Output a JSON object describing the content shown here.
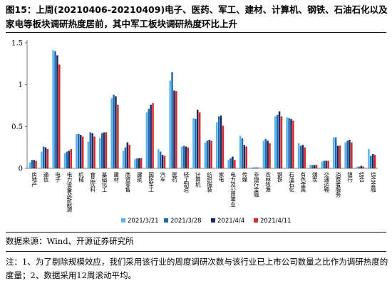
{
  "header": {
    "title": "图15：上周(20210406-20210409)电子、医药、军工、建材、计算机、钢铁、石油石化以及家电等板块调研热度居前，其中军工板块调研热度环比上升"
  },
  "footer": {
    "source": "数据来源：Wind、开源证券研究所",
    "note": "注：1、为了剔除规模效应，我们采用该行业的周度调研次数与该行业已上市公司数量之比作为调研热度的度量；2、数据采用12周滚动平均。"
  },
  "chart_data": {
    "type": "bar",
    "title": "",
    "xlabel": "",
    "ylabel": "",
    "ylim": [
      0,
      1.5
    ],
    "yticks": [
      0,
      0.5,
      1,
      1.5
    ],
    "ytick_labels": [
      "0",
      "0.5",
      "1",
      "1.5"
    ],
    "grid": false,
    "legend_position": "bottom",
    "categories": [
      "房地产",
      "通信",
      "电子",
      "电力设备及新能源",
      "机械",
      "食品饮料",
      "基础化工",
      "建材",
      "商贸零售",
      "建筑",
      "国防军工",
      "汽车",
      "医药",
      "轻工制造",
      "计算机",
      "纺织服装",
      "家电",
      "电力及公用事业",
      "传媒",
      "非银行金融",
      "农林牧渔",
      "钢铁",
      "石油石化",
      "有色金属",
      "煤炭",
      "交通运输",
      "消费者服务",
      "银行",
      "综合",
      "综合金融"
    ],
    "series": [
      {
        "name": "2021/3/21",
        "color": "#5bb4e6",
        "values": [
          0.07,
          0.2,
          1.41,
          0.18,
          0.41,
          0.32,
          0.36,
          0.84,
          0.21,
          0.11,
          0.67,
          0.23,
          1.05,
          0.26,
          0.6,
          0.31,
          0.55,
          0.1,
          0.39,
          0.01,
          0.33,
          0.62,
          0.61,
          0.3,
          0.04,
          0.08,
          0.37,
          0.31,
          0.02,
          0.23
        ]
      },
      {
        "name": "2021/3/28",
        "color": "#1d69b5",
        "values": [
          0.1,
          0.26,
          1.4,
          0.2,
          0.41,
          0.43,
          0.42,
          0.88,
          0.25,
          0.12,
          0.71,
          0.2,
          1.15,
          0.27,
          0.59,
          0.33,
          0.62,
          0.12,
          0.36,
          0.01,
          0.35,
          0.64,
          0.6,
          0.27,
          0.04,
          0.09,
          0.37,
          0.33,
          0.02,
          0.15
        ]
      },
      {
        "name": "2021/4/4",
        "color": "#1a2a5c",
        "values": [
          0.1,
          0.25,
          1.35,
          0.21,
          0.4,
          0.42,
          0.43,
          0.86,
          0.31,
          0.12,
          0.76,
          0.16,
          0.93,
          0.26,
          0.7,
          0.34,
          0.63,
          0.14,
          0.28,
          0.01,
          0.33,
          0.68,
          0.59,
          0.28,
          0.04,
          0.09,
          0.27,
          0.34,
          0.03,
          0.17
        ]
      },
      {
        "name": "2021/4/11",
        "color": "#d6282b",
        "values": [
          0.09,
          0.23,
          1.24,
          0.23,
          0.38,
          0.38,
          0.43,
          0.76,
          0.28,
          0.12,
          0.78,
          0.15,
          0.92,
          0.25,
          0.67,
          0.33,
          0.51,
          0.1,
          0.26,
          0.01,
          0.3,
          0.62,
          0.57,
          0.25,
          0.04,
          0.09,
          0.27,
          0.31,
          0.02,
          0.16
        ]
      }
    ]
  }
}
